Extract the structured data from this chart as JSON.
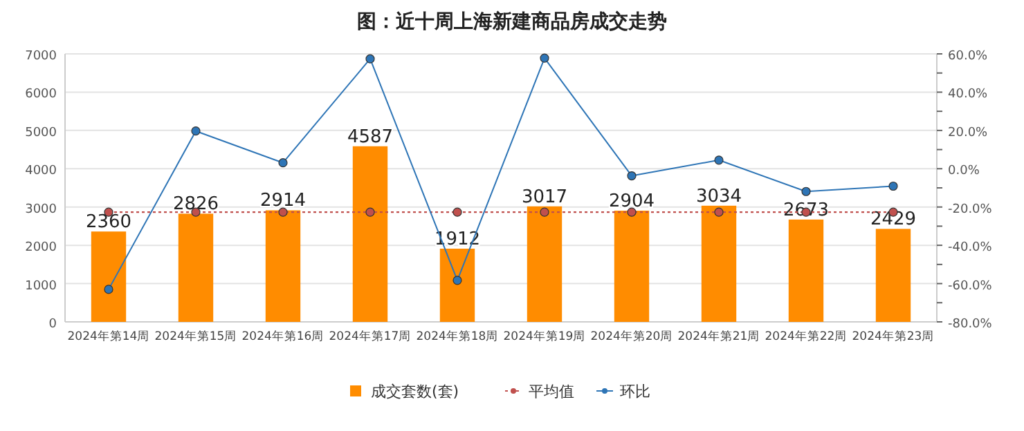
{
  "chart_data": {
    "type": "bar",
    "title": "图：近十周上海新建商品房成交走势",
    "categories": [
      "2024年第14周",
      "2024年第15周",
      "2024年第16周",
      "2024年第17周",
      "2024年第18周",
      "2024年第19周",
      "2024年第20周",
      "2024年第21周",
      "2024年第22周",
      "2024年第23周"
    ],
    "series": [
      {
        "name": "成交套数(套)",
        "color": "#ff8c00",
        "values": [
          2360,
          2826,
          2914,
          4587,
          1912,
          3017,
          2904,
          3034,
          2673,
          2429
        ],
        "value_labels": [
          "2360",
          "2826",
          "2914",
          "4587",
          "1912",
          "3017",
          "2904",
          "3034",
          "2673",
          "2429"
        ]
      },
      {
        "name": "平均值",
        "type": "line",
        "color": "#c0504d",
        "line_style": "dotted",
        "values": [
          2866,
          2866,
          2866,
          2866,
          2866,
          2866,
          2866,
          2866,
          2866,
          2866
        ]
      },
      {
        "name": "环比",
        "type": "line",
        "axis": "y2",
        "color": "#2e75b6",
        "line_style": "solid",
        "values": [
          -63,
          19.7,
          3.1,
          57.4,
          -58.3,
          57.8,
          -3.7,
          4.5,
          -11.9,
          -9.1
        ]
      }
    ],
    "ylim": [
      0,
      7000
    ],
    "yticks": [
      0,
      1000,
      2000,
      3000,
      4000,
      5000,
      6000,
      7000
    ],
    "y2lim": [
      -80,
      60
    ],
    "y2ticks": [
      {
        "value": -80,
        "label": "-80.0%"
      },
      {
        "value": -70,
        "label": null
      },
      {
        "value": -60,
        "label": "-60.0%"
      },
      {
        "value": -50,
        "label": null
      },
      {
        "value": -40,
        "label": "-40.0%"
      },
      {
        "value": -30,
        "label": null
      },
      {
        "value": -20,
        "label": "-20.0%"
      },
      {
        "value": -10,
        "label": null
      },
      {
        "value": 0,
        "label": "0.0%"
      },
      {
        "value": 10,
        "label": null
      },
      {
        "value": 20,
        "label": "20.0%"
      },
      {
        "value": 30,
        "label": null
      },
      {
        "value": 40,
        "label": "40.0%"
      },
      {
        "value": 50,
        "label": null
      },
      {
        "value": 60,
        "label": "60.0%"
      }
    ],
    "marker": "circle",
    "grid": "y",
    "legend": "bottom"
  }
}
